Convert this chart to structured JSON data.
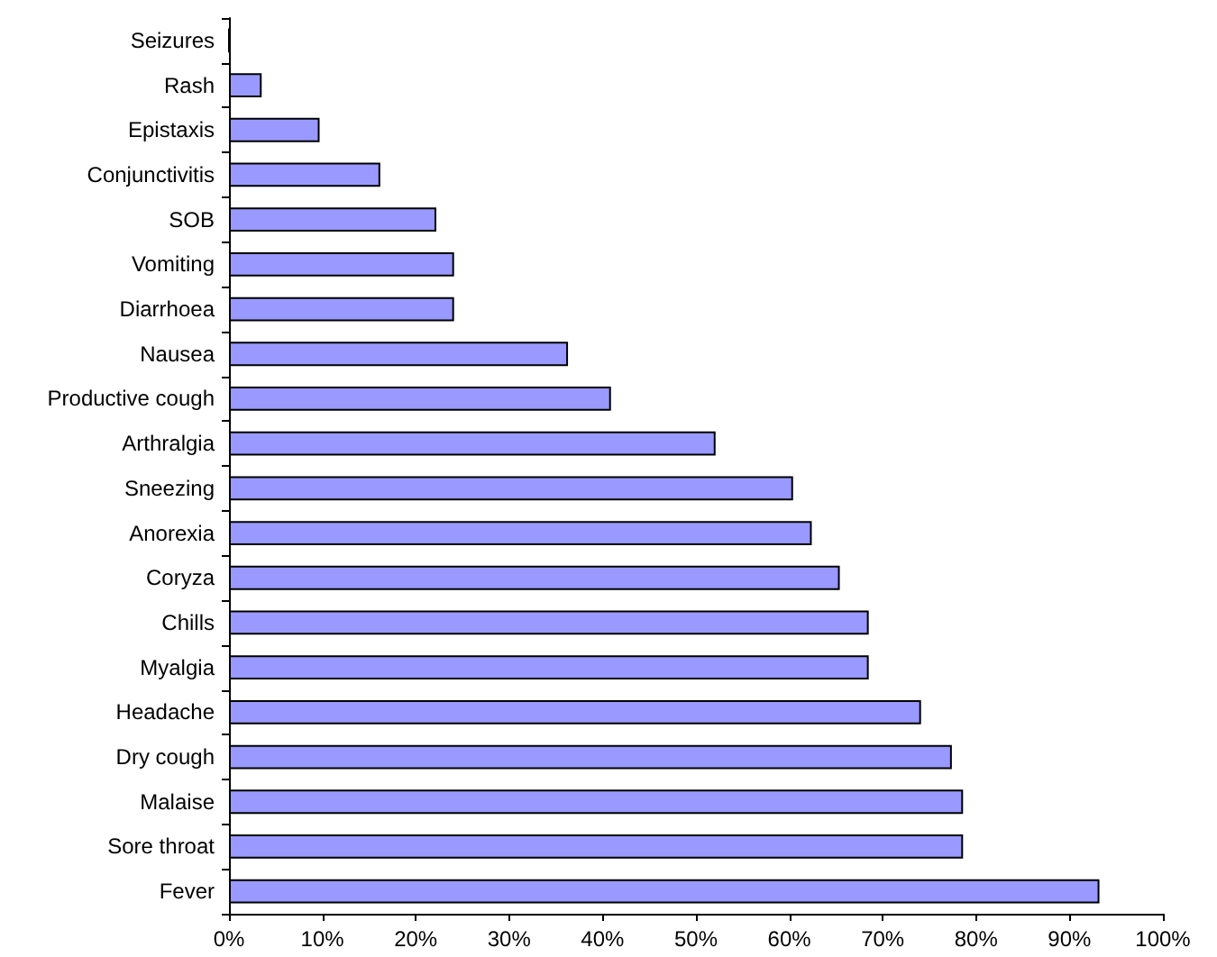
{
  "chart_data": {
    "type": "bar",
    "orientation": "horizontal",
    "categories": [
      "Seizures",
      "Rash",
      "Epistaxis",
      "Conjunctivitis",
      "SOB",
      "Vomiting",
      "Diarrhoea",
      "Nausea",
      "Productive cough",
      "Arthralgia",
      "Sneezing",
      "Anorexia",
      "Coryza",
      "Chills",
      "Myalgia",
      "Headache",
      "Dry cough",
      "Malaise",
      "Sore throat",
      "Fever"
    ],
    "values": [
      0,
      3.5,
      9.7,
      16.2,
      22.2,
      24.1,
      24.1,
      36.3,
      40.9,
      52.1,
      60.4,
      62.4,
      65.4,
      68.5,
      68.5,
      74.1,
      77.4,
      78.6,
      78.6,
      93.2
    ],
    "color": "#9999ff",
    "xlim": [
      0,
      100
    ],
    "xticks": [
      {
        "value": 0,
        "label": "0%"
      },
      {
        "value": 10,
        "label": "10%"
      },
      {
        "value": 20,
        "label": "20%"
      },
      {
        "value": 30,
        "label": "30%"
      },
      {
        "value": 40,
        "label": "40%"
      },
      {
        "value": 50,
        "label": "50%"
      },
      {
        "value": 60,
        "label": "60%"
      },
      {
        "value": 70,
        "label": "70%"
      },
      {
        "value": 80,
        "label": "80%"
      },
      {
        "value": 90,
        "label": "90%"
      },
      {
        "value": 100,
        "label": "100%"
      }
    ],
    "grid": false
  }
}
